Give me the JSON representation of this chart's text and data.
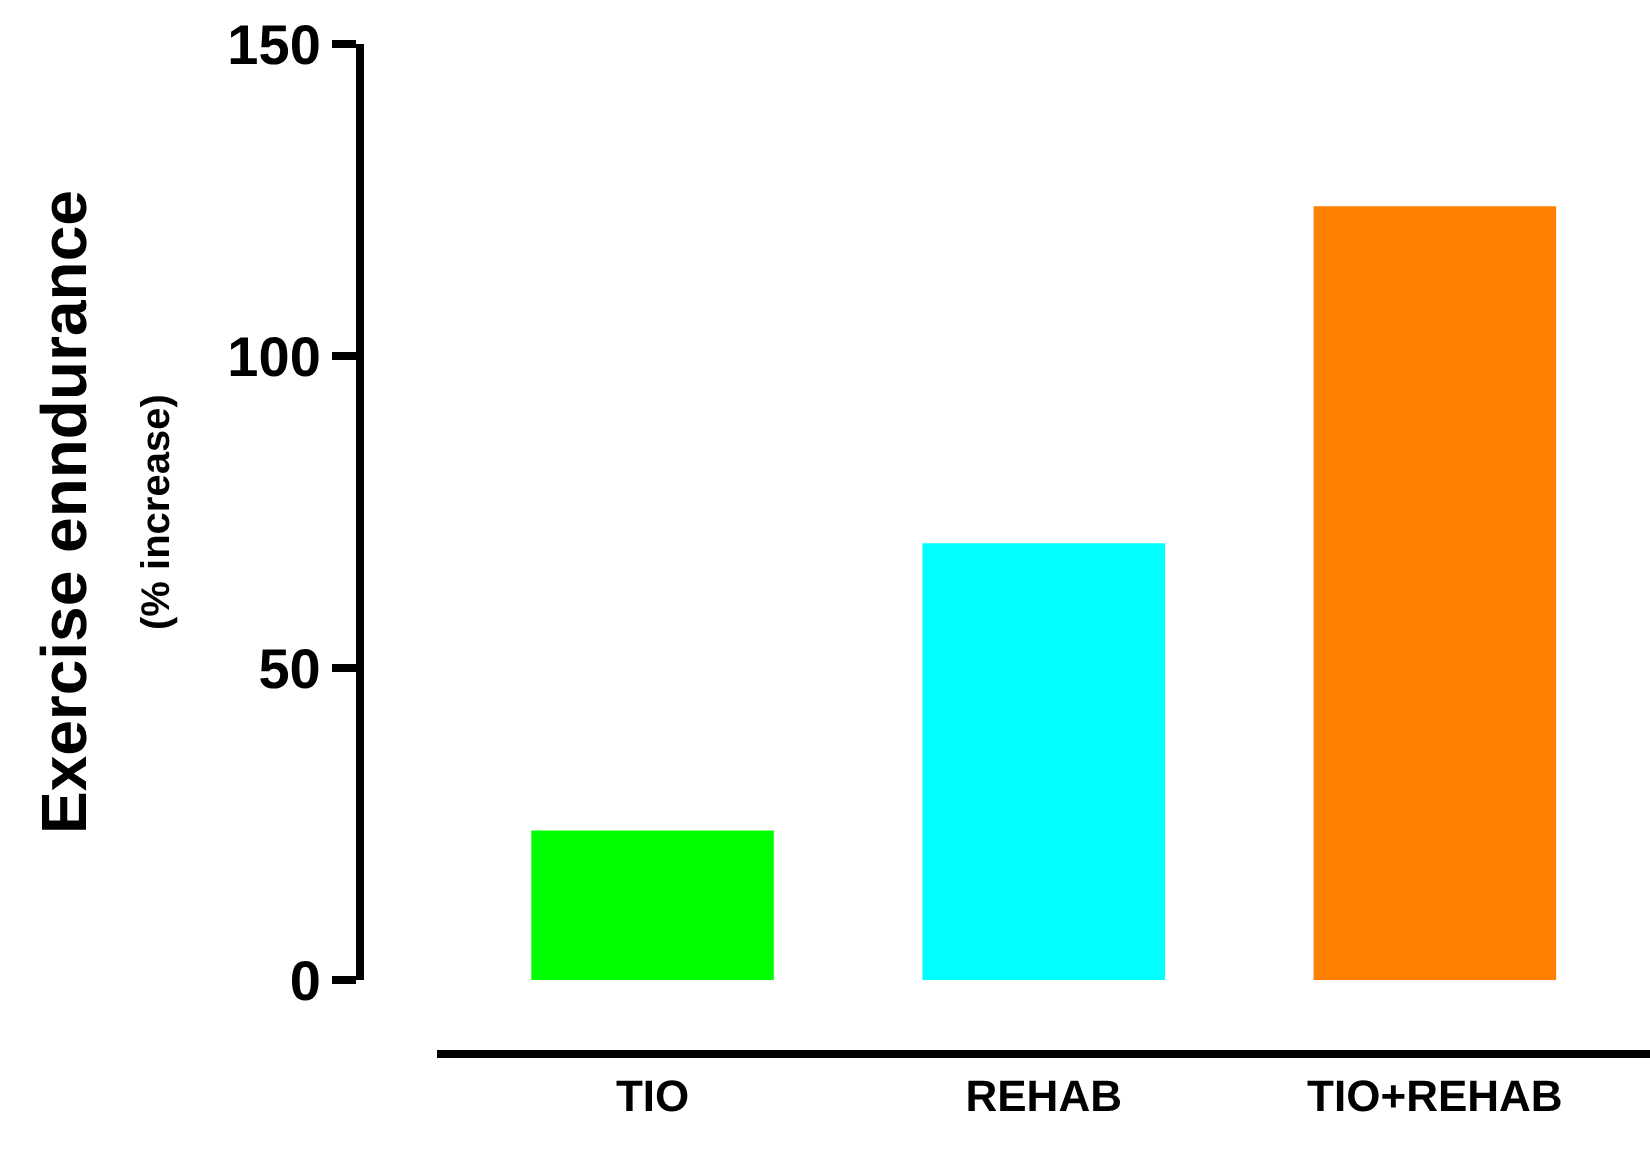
{
  "chart_data": {
    "type": "bar",
    "ylabel": "Exercise enndurance\n(% increase)",
    "categories": [
      "TIO",
      "REHAB",
      "TIO+REHAB"
    ],
    "values": [
      24,
      70,
      124
    ],
    "colors": [
      "#00ff00",
      "#00ffff",
      "#ff8000"
    ],
    "ylim": [
      0,
      150
    ],
    "yticks": [
      0,
      50,
      100,
      150
    ],
    "legend": false
  }
}
